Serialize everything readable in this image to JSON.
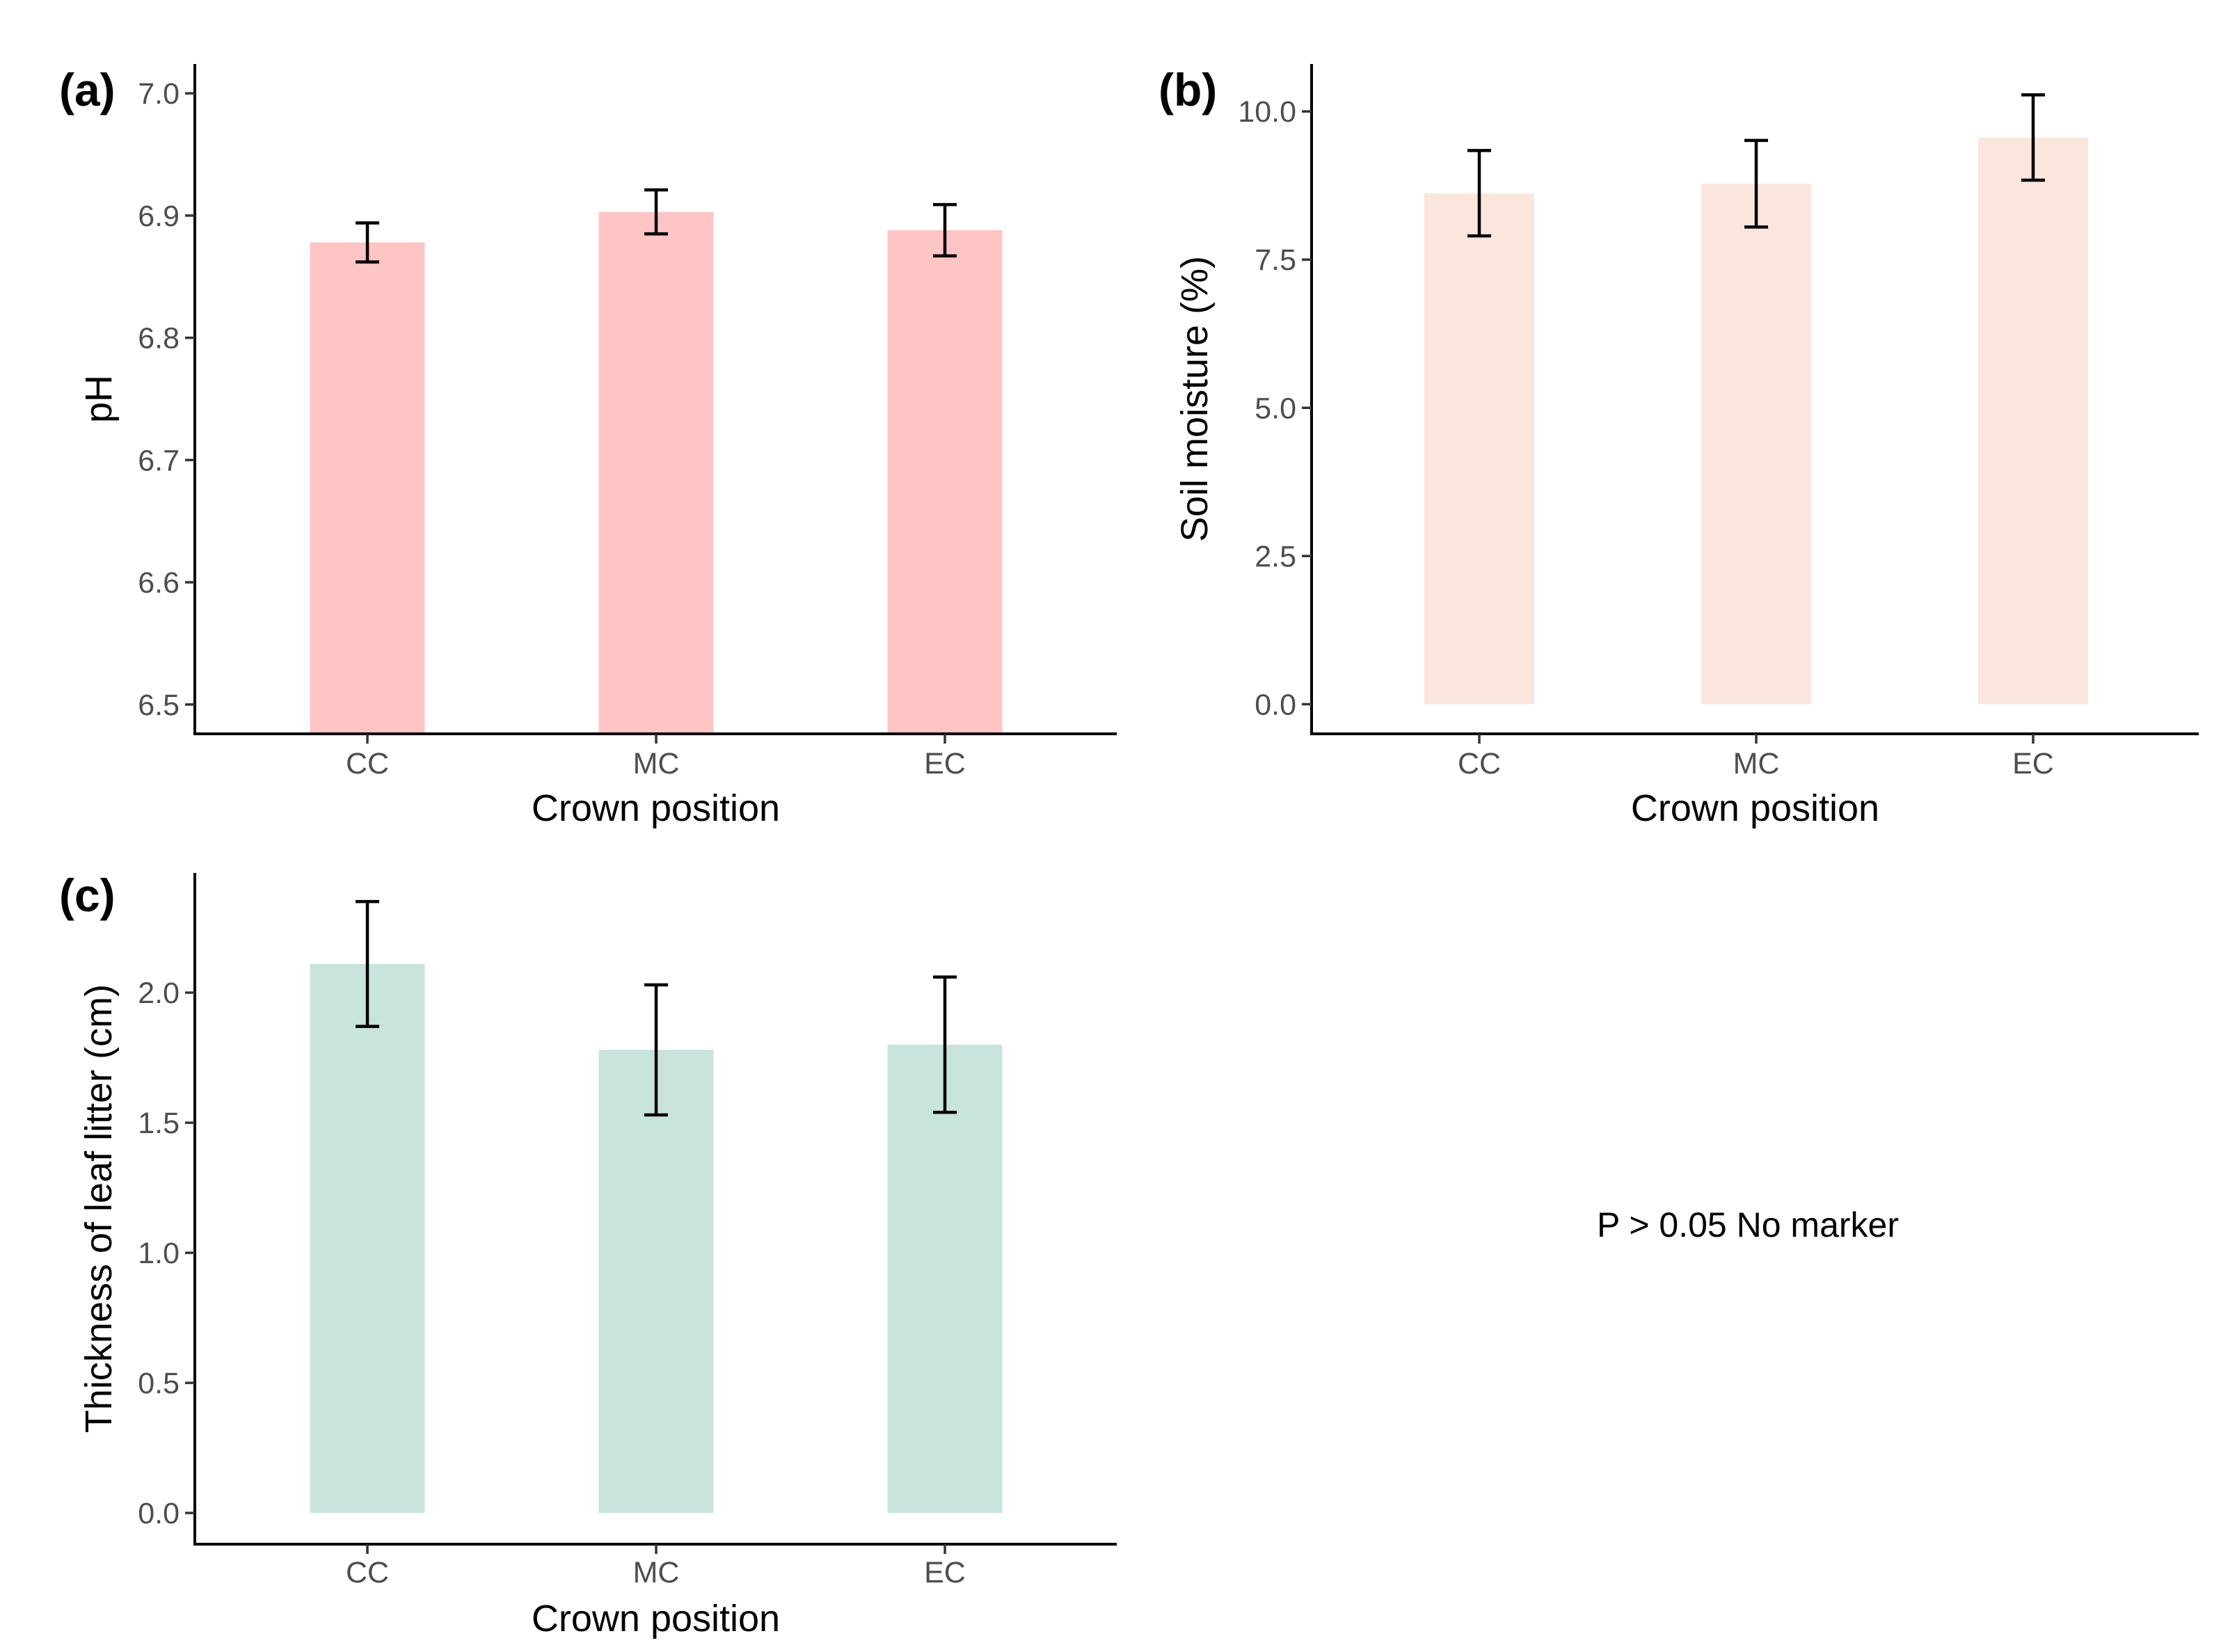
{
  "note": "P > 0.05 No marker",
  "chart_data": [
    {
      "type": "bar",
      "panel": "(a)",
      "categories": [
        "CC",
        "MC",
        "EC"
      ],
      "values": [
        6.878,
        6.903,
        6.888
      ],
      "errors": [
        0.016,
        0.018,
        0.021
      ],
      "xlabel": "Crown position",
      "ylabel": "pH",
      "ylim": [
        6.476,
        7.024
      ],
      "ybase": 6.476,
      "yticks": [
        6.5,
        6.6,
        6.7,
        6.8,
        6.9,
        7.0
      ],
      "ytick_labels": [
        "6.5",
        "6.6",
        "6.7",
        "6.8",
        "6.9",
        "7.0"
      ],
      "color": "#ffc4c4"
    },
    {
      "type": "bar",
      "panel": "(b)",
      "categories": [
        "CC",
        "MC",
        "EC"
      ],
      "values": [
        8.62,
        8.78,
        9.56
      ],
      "errors": [
        0.72,
        0.73,
        0.72
      ],
      "xlabel": "Crown position",
      "ylabel": "Soil moisture (%)",
      "ylim": [
        -0.5,
        10.8
      ],
      "ybase": 0,
      "yticks": [
        0.0,
        2.5,
        5.0,
        7.5,
        10.0
      ],
      "ytick_labels": [
        "0.0",
        "2.5",
        "5.0",
        "7.5",
        "10.0"
      ],
      "color": "#fbe6de"
    },
    {
      "type": "bar",
      "panel": "(c)",
      "categories": [
        "CC",
        "MC",
        "EC"
      ],
      "values": [
        2.11,
        1.78,
        1.8
      ],
      "errors": [
        0.24,
        0.25,
        0.26
      ],
      "xlabel": "Crown position",
      "ylabel": "Thickness of leaf litter (cm)",
      "ylim": [
        -0.12,
        2.46
      ],
      "ybase": 0,
      "yticks": [
        0.0,
        0.5,
        1.0,
        1.5,
        2.0
      ],
      "ytick_labels": [
        "0.0",
        "0.5",
        "1.0",
        "1.5",
        "2.0"
      ],
      "color": "#c8e4dc"
    }
  ]
}
